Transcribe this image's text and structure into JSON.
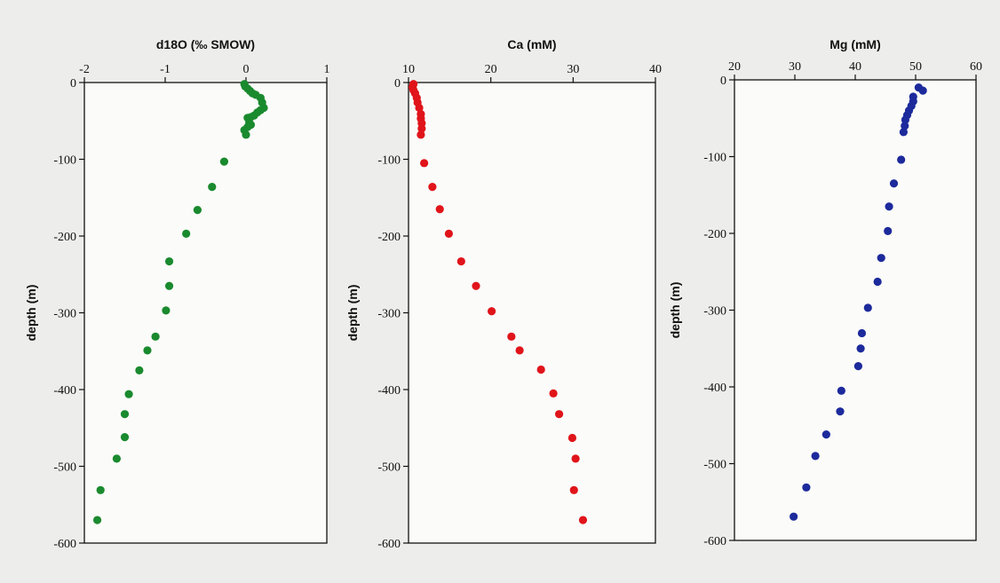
{
  "chart_data": [
    {
      "type": "scatter",
      "title": "d18O (‰ SMOW)",
      "ylabel": "depth (m)",
      "xlim": [
        -2,
        1
      ],
      "ylim": [
        -600,
        0
      ],
      "xticks": [
        "-2",
        "-1",
        "0",
        "1"
      ],
      "yticks": [
        "0",
        "-100",
        "-200",
        "-300",
        "-400",
        "-500",
        "-600"
      ],
      "color": "#1a8a2e",
      "points": [
        [
          -0.02,
          -2
        ],
        [
          -0.01,
          -5
        ],
        [
          0.02,
          -8
        ],
        [
          0.05,
          -11
        ],
        [
          0.08,
          -14
        ],
        [
          0.12,
          -16
        ],
        [
          0.18,
          -20
        ],
        [
          0.2,
          -26
        ],
        [
          0.22,
          -33
        ],
        [
          0.18,
          -36
        ],
        [
          0.14,
          -39
        ],
        [
          0.1,
          -43
        ],
        [
          0.06,
          -45
        ],
        [
          0.02,
          -46
        ],
        [
          0.04,
          -52
        ],
        [
          0.06,
          -55
        ],
        [
          0.02,
          -58
        ],
        [
          -0.02,
          -62
        ],
        [
          0.0,
          -68
        ],
        [
          -0.27,
          -103
        ],
        [
          -0.42,
          -136
        ],
        [
          -0.6,
          -166
        ],
        [
          -0.74,
          -197
        ],
        [
          -0.95,
          -233
        ],
        [
          -0.95,
          -265
        ],
        [
          -0.99,
          -297
        ],
        [
          -1.12,
          -331
        ],
        [
          -1.22,
          -349
        ],
        [
          -1.32,
          -375
        ],
        [
          -1.45,
          -406
        ],
        [
          -1.5,
          -432
        ],
        [
          -1.5,
          -462
        ],
        [
          -1.6,
          -490
        ],
        [
          -1.8,
          -531
        ],
        [
          -1.84,
          -570
        ]
      ]
    },
    {
      "type": "scatter",
      "title": "Ca (mM)",
      "ylabel": "depth (m)",
      "xlim": [
        10,
        40
      ],
      "ylim": [
        -600,
        0
      ],
      "xticks": [
        "10",
        "20",
        "30",
        "40"
      ],
      "yticks": [
        "0",
        "-100",
        "-200",
        "-300",
        "-400",
        "-500",
        "-600"
      ],
      "color": "#e0141a",
      "points": [
        [
          10.6,
          -2
        ],
        [
          10.5,
          -6
        ],
        [
          10.6,
          -10
        ],
        [
          10.8,
          -14
        ],
        [
          11.0,
          -20
        ],
        [
          11.1,
          -26
        ],
        [
          11.3,
          -33
        ],
        [
          11.5,
          -41
        ],
        [
          11.5,
          -47
        ],
        [
          11.6,
          -53
        ],
        [
          11.6,
          -60
        ],
        [
          11.5,
          -68
        ],
        [
          11.9,
          -105
        ],
        [
          12.9,
          -136
        ],
        [
          13.8,
          -165
        ],
        [
          14.9,
          -197
        ],
        [
          16.4,
          -233
        ],
        [
          18.2,
          -265
        ],
        [
          20.1,
          -298
        ],
        [
          22.5,
          -331
        ],
        [
          23.5,
          -349
        ],
        [
          26.1,
          -374
        ],
        [
          27.6,
          -405
        ],
        [
          28.3,
          -432
        ],
        [
          29.9,
          -463
        ],
        [
          30.3,
          -490
        ],
        [
          30.1,
          -531
        ],
        [
          31.2,
          -570
        ]
      ]
    },
    {
      "type": "scatter",
      "title": "Mg (mM)",
      "ylabel": "depth (m)",
      "xlim": [
        20,
        60
      ],
      "ylim": [
        -600,
        0
      ],
      "xticks": [
        "20",
        "30",
        "40",
        "50",
        "60"
      ],
      "yticks": [
        "0",
        "-100",
        "-200",
        "-300",
        "-400",
        "-500",
        "-600"
      ],
      "color": "#1c2a9c",
      "points": [
        [
          50.5,
          -10
        ],
        [
          51.2,
          -14
        ],
        [
          49.6,
          -22
        ],
        [
          49.6,
          -28
        ],
        [
          49.3,
          -34
        ],
        [
          48.9,
          -40
        ],
        [
          48.6,
          -46
        ],
        [
          48.3,
          -52
        ],
        [
          48.2,
          -60
        ],
        [
          48.0,
          -68
        ],
        [
          47.6,
          -104
        ],
        [
          46.4,
          -135
        ],
        [
          45.6,
          -165
        ],
        [
          45.4,
          -197
        ],
        [
          44.3,
          -232
        ],
        [
          43.7,
          -263
        ],
        [
          42.1,
          -297
        ],
        [
          41.1,
          -330
        ],
        [
          40.9,
          -350
        ],
        [
          40.5,
          -373
        ],
        [
          37.7,
          -405
        ],
        [
          37.5,
          -432
        ],
        [
          35.2,
          -462
        ],
        [
          33.4,
          -490
        ],
        [
          31.9,
          -531
        ],
        [
          29.8,
          -569
        ]
      ]
    }
  ]
}
